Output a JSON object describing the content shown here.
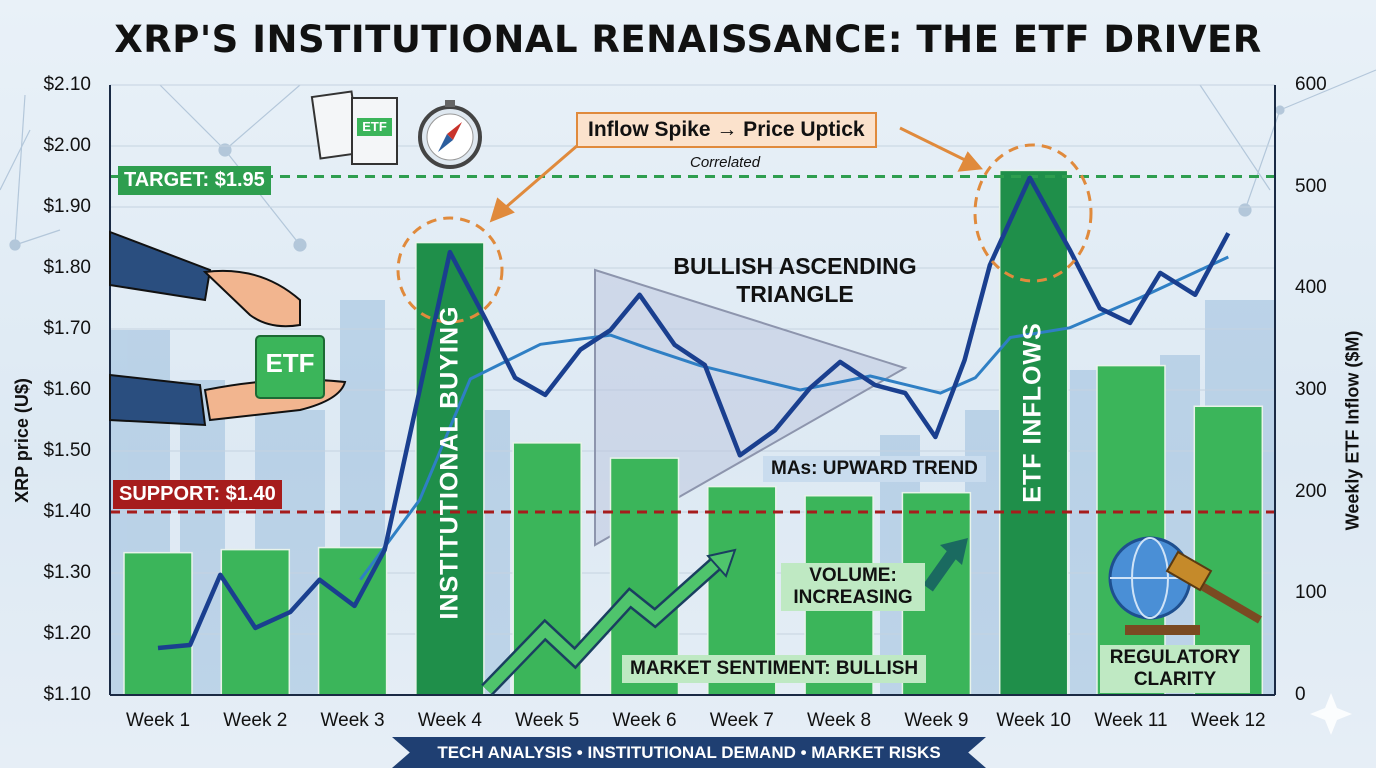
{
  "chart_data": {
    "type": "bar+line",
    "title": "XRP'S INSTITUTIONAL RENAISSANCE: THE ETF DRIVER",
    "categories": [
      "Week 1",
      "Week 2",
      "Week 3",
      "Week 4",
      "Week 5",
      "Week 6",
      "Week 7",
      "Week 8",
      "Week 9",
      "Week 10",
      "Week 11",
      "Week 12"
    ],
    "ylabel_left": "XRP price (U$)",
    "ylabel_right": "Weekly ETF Inflow ($M)",
    "ylim_left": [
      1.1,
      2.1
    ],
    "ylim_right": [
      0,
      600
    ],
    "yticks_left": [
      "$2.10",
      "$2.00",
      "$1.90",
      "$1.80",
      "$1.70",
      "$1.60",
      "$1.50",
      "$1.40",
      "$1.30",
      "$1.20",
      "$1.10"
    ],
    "yticks_right": [
      "600",
      "500",
      "400",
      "300",
      "200",
      "100",
      "0"
    ],
    "bars": {
      "name": "Weekly ETF Inflow ($M)",
      "color": "#3bb55a",
      "highlight_color": "#1f8f4a",
      "highlight": [
        4,
        10
      ],
      "values": [
        140,
        143,
        145,
        445,
        248,
        233,
        205,
        196,
        199,
        516,
        324,
        284
      ]
    },
    "price_line": {
      "name": "XRP price",
      "color": "#1a3f8f",
      "points": [
        [
          1.0,
          1.177
        ],
        [
          1.33,
          1.182
        ],
        [
          1.64,
          1.297
        ],
        [
          2.0,
          1.21
        ],
        [
          2.36,
          1.236
        ],
        [
          2.66,
          1.289
        ],
        [
          3.02,
          1.246
        ],
        [
          3.33,
          1.338
        ],
        [
          4.0,
          1.826
        ],
        [
          4.36,
          1.718
        ],
        [
          4.67,
          1.62
        ],
        [
          4.98,
          1.592
        ],
        [
          5.34,
          1.666
        ],
        [
          5.65,
          1.698
        ],
        [
          5.95,
          1.756
        ],
        [
          6.31,
          1.674
        ],
        [
          6.62,
          1.641
        ],
        [
          6.98,
          1.493
        ],
        [
          7.34,
          1.534
        ],
        [
          7.7,
          1.603
        ],
        [
          8.01,
          1.646
        ],
        [
          8.37,
          1.608
        ],
        [
          8.68,
          1.595
        ],
        [
          8.99,
          1.523
        ],
        [
          9.29,
          1.649
        ],
        [
          9.55,
          1.805
        ],
        [
          9.96,
          1.948
        ],
        [
          10.37,
          1.83
        ],
        [
          10.68,
          1.734
        ],
        [
          10.99,
          1.71
        ],
        [
          11.3,
          1.792
        ],
        [
          11.66,
          1.756
        ],
        [
          12.0,
          1.857
        ]
      ]
    },
    "ma_line": {
      "name": "Moving average",
      "color": "#2f7fc4",
      "points": [
        [
          3.08,
          1.289
        ],
        [
          3.69,
          1.42
        ],
        [
          4.21,
          1.618
        ],
        [
          4.93,
          1.675
        ],
        [
          5.65,
          1.69
        ],
        [
          6.06,
          1.667
        ],
        [
          6.57,
          1.64
        ],
        [
          7.08,
          1.62
        ],
        [
          7.6,
          1.6
        ],
        [
          8.32,
          1.623
        ],
        [
          9.04,
          1.595
        ],
        [
          9.4,
          1.62
        ],
        [
          9.76,
          1.686
        ],
        [
          10.37,
          1.702
        ],
        [
          11.09,
          1.751
        ],
        [
          12.0,
          1.818
        ]
      ]
    },
    "reference_lines": [
      {
        "label": "TARGET: $1.95",
        "value": 1.95,
        "color": "#2e9e4f"
      },
      {
        "label": "SUPPORT: $1.40",
        "value": 1.4,
        "color": "#a61c1c"
      }
    ],
    "annotations": {
      "spike_callout": "Inflow Spike → Price Uptick",
      "spike_sub": "Correlated",
      "triangle": "BULLISH ASCENDING TRIANGLE",
      "ma_trend": "MAs: UPWARD TREND",
      "volume": "VOLUME: INCREASING",
      "sentiment": "MARKET SENTIMENT: BULLISH",
      "regulatory": "REGULATORY CLARITY",
      "week4_bar": "INSTITUTIONAL BUYING",
      "week10_bar": "ETF INFLOWS",
      "etf_block": "ETF",
      "etf_doc": "ETF"
    },
    "banner": "TECH ANALYSIS • INSTITUTIONAL DEMAND • MARKET RISKS"
  }
}
